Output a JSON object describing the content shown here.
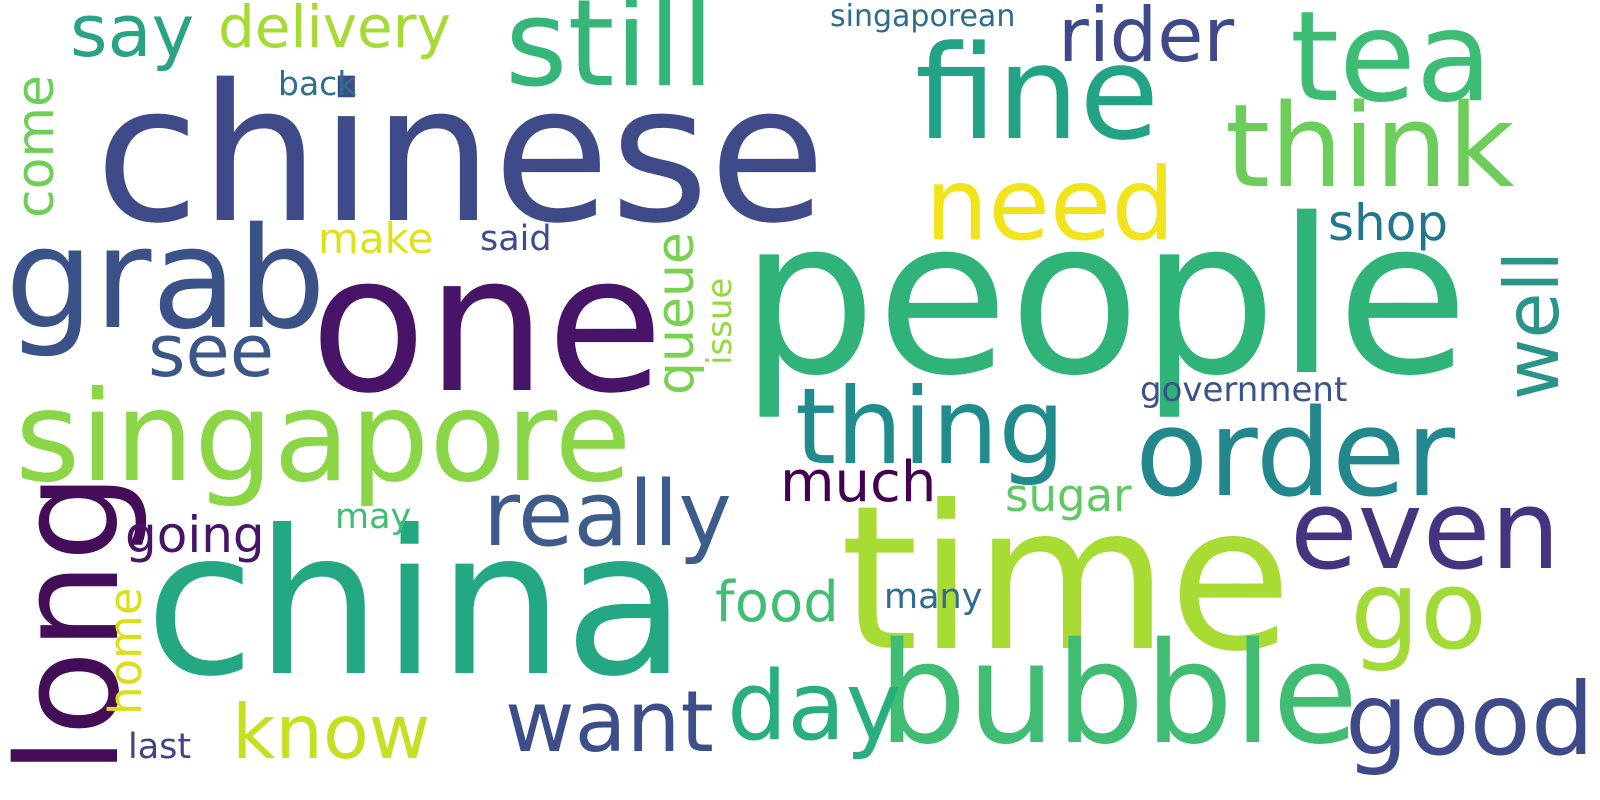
{
  "words": {
    "chinese": "chinese",
    "one": "one",
    "people": "people",
    "china": "china",
    "time": "time",
    "singapore": "singapore",
    "bubble": "bubble",
    "still": "still",
    "fine": "fine",
    "tea": "tea",
    "think": "think",
    "grab": "grab",
    "need": "need",
    "thing": "thing",
    "order": "order",
    "even": "even",
    "go": "go",
    "good": "good",
    "want": "want",
    "day": "day",
    "know": "know",
    "really": "really",
    "long": "long",
    "say": "say",
    "delivery": "delivery",
    "rider": "rider",
    "see": "see",
    "much": "much",
    "going": "going",
    "make": "make",
    "said": "said",
    "back": "back",
    "singaporean": "singaporean",
    "shop": "shop",
    "government": "government",
    "sugar": "sugar",
    "food": "food",
    "may": "may",
    "many": "many",
    "last": "last",
    "come": "come",
    "queue": "queue",
    "issue": "issue",
    "well": "well",
    "home": "home"
  },
  "colors": {
    "background": "#ffffff",
    "palette": [
      "#440154",
      "#3b528b",
      "#21918c",
      "#5ec962",
      "#fde725"
    ]
  }
}
